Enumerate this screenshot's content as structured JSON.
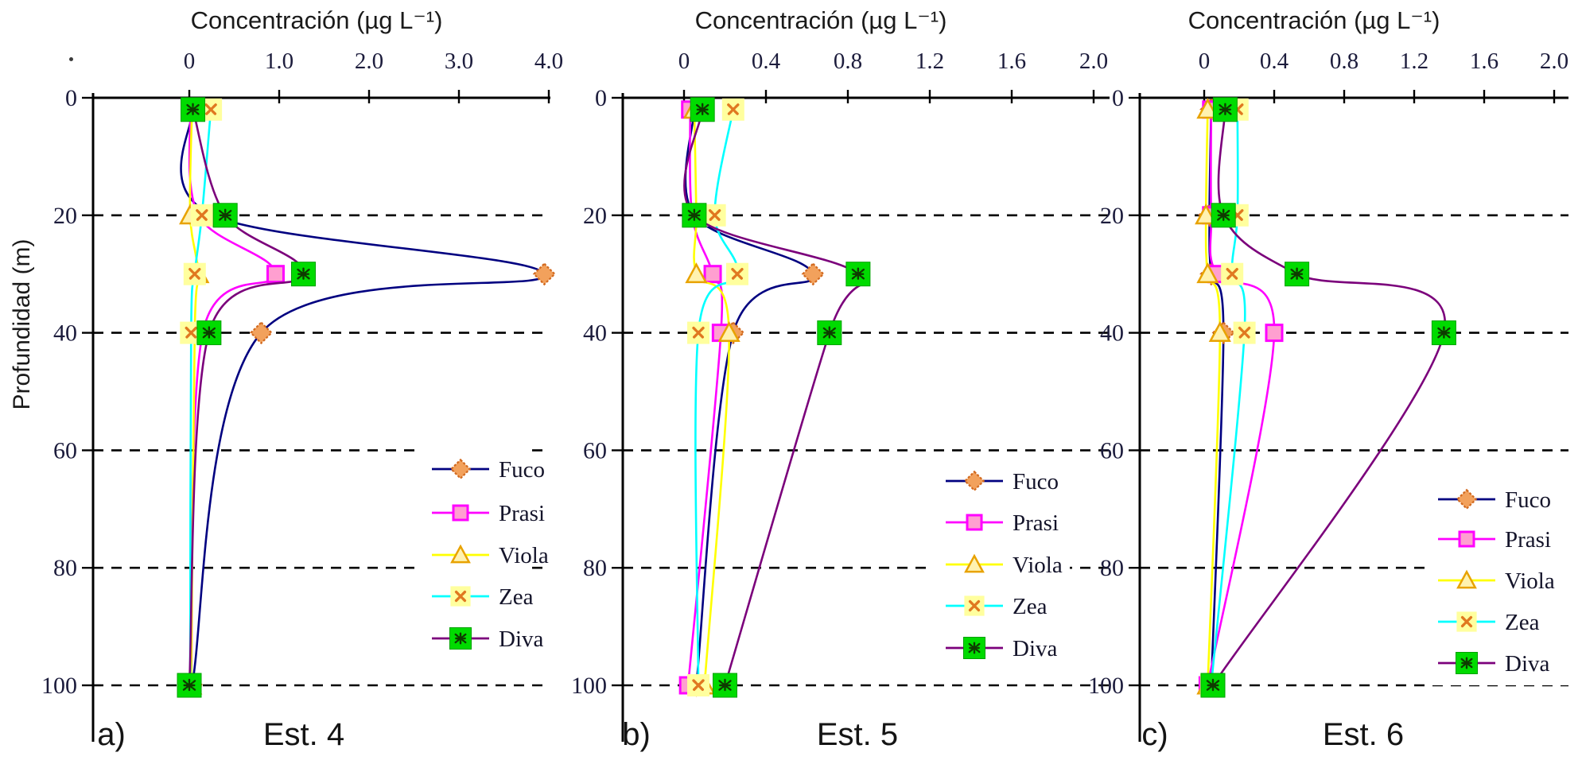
{
  "figure": {
    "background_color": "#ffffff",
    "axis_color": "#000000",
    "tick_label_color": "#1c1c3c",
    "ylabel": "Profundidad (m)",
    "depth_tick_labels": [
      "0",
      "20",
      "40",
      "60",
      "80",
      "100"
    ],
    "legend_items": [
      "Fuco",
      "Prasi",
      "Viola",
      "Zea",
      "Diva"
    ]
  },
  "series_styles": [
    {
      "name": "Fuco",
      "line_color": "#000080",
      "marker": "diamond",
      "marker_fill": "#F2A express15C",
      "marker_fill_fix": "#F2A15C",
      "marker_stroke": "#D2691E"
    },
    {
      "name": "Prasi",
      "line_color": "#FF00FF",
      "marker": "square",
      "marker_fill": "#FF9FD0",
      "marker_stroke": "#FF00FF"
    },
    {
      "name": "Viola",
      "line_color": "#FFFF00",
      "marker": "triangle",
      "marker_fill": "#FFF2B0",
      "marker_stroke": "#E8A200"
    },
    {
      "name": "Zea",
      "line_color": "#00FFFF",
      "marker": "x-square",
      "marker_fill": "#FFFF9E",
      "marker_stroke": "#E07820"
    },
    {
      "name": "Diva",
      "line_color": "#7B007B",
      "marker": "asterisk-square",
      "marker_fill": "#00DB00",
      "marker_stroke": "#0E3B00"
    }
  ],
  "chart_data": [
    {
      "type": "line",
      "panel_label": "a)",
      "station": "Est. 4",
      "title": "Concentración (µg L⁻¹)",
      "xlabel": "Concentración (µg L⁻¹)",
      "ylabel": "Profundidad (m)",
      "xlim": [
        0,
        4
      ],
      "ylim": [
        0,
        100
      ],
      "grid": "horizontal dashed at 20,40,60,80,100 m",
      "legend_position": "right-middle",
      "xticks": [
        0,
        1,
        2,
        3,
        4
      ],
      "xtick_labels": [
        "0",
        "1.0",
        "2.0",
        "3.0",
        "4.0"
      ],
      "yticks": [
        0,
        20,
        40,
        60,
        80,
        100
      ],
      "depths_m": [
        2,
        20,
        30,
        40,
        100
      ],
      "series": [
        {
          "name": "Fuco",
          "values": [
            0.03,
            0.26,
            3.95,
            0.8,
            0.03
          ]
        },
        {
          "name": "Prasi",
          "values": [
            0.01,
            0.1,
            0.96,
            0.15,
            0.02
          ]
        },
        {
          "name": "Viola",
          "values": [
            0.03,
            0.01,
            0.1,
            0.06,
            0.02
          ]
        },
        {
          "name": "Zea",
          "values": [
            0.24,
            0.14,
            0.06,
            0.02,
            0.01
          ]
        },
        {
          "name": "Diva",
          "values": [
            0.04,
            0.4,
            1.27,
            0.22,
            0.0
          ]
        }
      ]
    },
    {
      "type": "line",
      "panel_label": "b)",
      "station": "Est. 5",
      "title": "Concentración (µg L⁻¹)",
      "xlabel": "Concentración (µg L⁻¹)",
      "ylabel": "Profundidad (m)",
      "xlim": [
        0,
        2
      ],
      "ylim": [
        0,
        100
      ],
      "grid": "horizontal dashed at 20,40,60,80,100 m",
      "legend_position": "right-middle",
      "xticks": [
        0,
        0.4,
        0.8,
        1.2,
        1.6,
        2.0
      ],
      "xtick_labels": [
        "0",
        "0.4",
        "0.8",
        "1.2",
        "1.6",
        "2.0"
      ],
      "yticks": [
        0,
        20,
        40,
        60,
        80,
        100
      ],
      "depths_m": [
        2,
        20,
        30,
        40,
        100
      ],
      "series": [
        {
          "name": "Fuco",
          "values": [
            0.05,
            0.05,
            0.63,
            0.24,
            0.06
          ]
        },
        {
          "name": "Prasi",
          "values": [
            0.03,
            0.04,
            0.14,
            0.18,
            0.02
          ]
        },
        {
          "name": "Viola",
          "values": [
            0.05,
            0.06,
            0.06,
            0.22,
            0.1
          ]
        },
        {
          "name": "Zea",
          "values": [
            0.24,
            0.15,
            0.26,
            0.07,
            0.07
          ]
        },
        {
          "name": "Diva",
          "values": [
            0.09,
            0.05,
            0.85,
            0.71,
            0.2
          ]
        }
      ]
    },
    {
      "type": "line",
      "panel_label": "c)",
      "station": "Est. 6",
      "title": "Concentración (µg L⁻¹)",
      "xlabel": "Concentración (µg L⁻¹)",
      "ylabel": "Profundidad (m)",
      "xlim": [
        0,
        2
      ],
      "ylim": [
        0,
        100
      ],
      "grid": "horizontal dashed at 20,40,60,80,100 m",
      "legend_position": "right-middle",
      "xticks": [
        0,
        0.4,
        0.8,
        1.2,
        1.6,
        2.0
      ],
      "xtick_labels": [
        "0",
        "0.4",
        "0.8",
        "1.2",
        "1.6",
        "2.0"
      ],
      "yticks": [
        0,
        20,
        40,
        60,
        80,
        100
      ],
      "depths_m": [
        2,
        20,
        30,
        40,
        100
      ],
      "series": [
        {
          "name": "Fuco",
          "values": [
            0.04,
            0.03,
            0.04,
            0.11,
            0.04
          ]
        },
        {
          "name": "Prasi",
          "values": [
            0.04,
            0.04,
            0.07,
            0.4,
            0.02
          ]
        },
        {
          "name": "Viola",
          "values": [
            0.02,
            0.01,
            0.02,
            0.09,
            0.02
          ]
        },
        {
          "name": "Zea",
          "values": [
            0.19,
            0.19,
            0.16,
            0.23,
            0.04
          ]
        },
        {
          "name": "Diva",
          "values": [
            0.12,
            0.11,
            0.53,
            1.37,
            0.05
          ]
        }
      ]
    }
  ]
}
